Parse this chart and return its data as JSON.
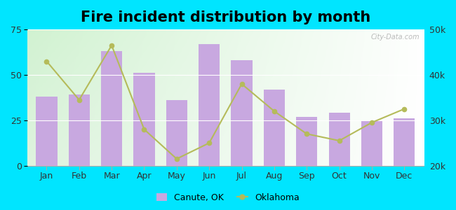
{
  "title": "Fire incident distribution by month",
  "months": [
    "Jan",
    "Feb",
    "Mar",
    "Apr",
    "May",
    "Jun",
    "Jul",
    "Aug",
    "Sep",
    "Oct",
    "Nov",
    "Dec"
  ],
  "canute_values": [
    38,
    39,
    63,
    51,
    36,
    67,
    58,
    42,
    27,
    29,
    25,
    26
  ],
  "oklahoma_values": [
    43000,
    34500,
    46500,
    28000,
    21500,
    25000,
    38000,
    32000,
    27000,
    25500,
    29500,
    32500
  ],
  "bar_color": "#c8a8e0",
  "line_color": "#b5bb5a",
  "bg_color": "#00e5ff",
  "left_ylim": [
    0,
    75
  ],
  "right_ylim": [
    20000,
    50000
  ],
  "left_yticks": [
    0,
    25,
    50,
    75
  ],
  "right_yticks": [
    20000,
    30000,
    40000,
    50000
  ],
  "right_yticklabels": [
    "20k",
    "30k",
    "40k",
    "50k"
  ],
  "title_fontsize": 15,
  "watermark": "City-Data.com"
}
